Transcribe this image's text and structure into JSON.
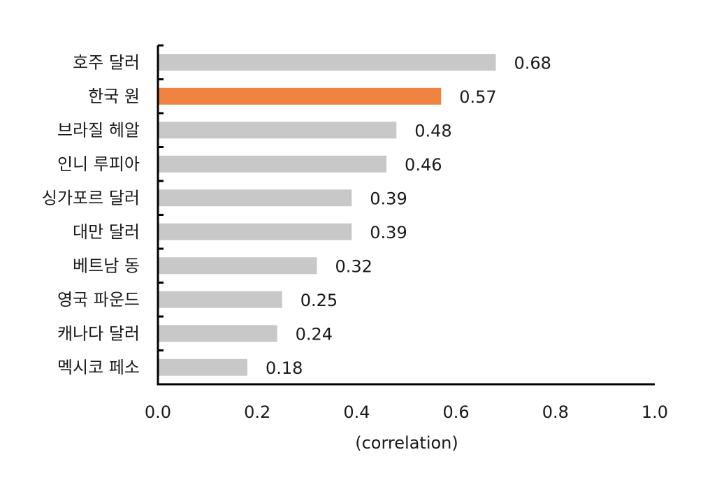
{
  "chart_data": {
    "type": "bar",
    "orientation": "horizontal",
    "categories": [
      "호주 달러",
      "한국 원",
      "브라질 헤알",
      "인니 루피아",
      "싱가포르 달러",
      "대만 달러",
      "베트남 동",
      "영국 파운드",
      "캐나다 달러",
      "멕시코 페소"
    ],
    "values": [
      0.68,
      0.57,
      0.48,
      0.46,
      0.39,
      0.39,
      0.32,
      0.25,
      0.24,
      0.18
    ],
    "value_labels": [
      "0.68",
      "0.57",
      "0.48",
      "0.46",
      "0.39",
      "0.39",
      "0.32",
      "0.25",
      "0.24",
      "0.18"
    ],
    "highlight_category": "한국 원",
    "xlim": [
      0,
      1.0
    ],
    "xticks": [
      0.0,
      0.2,
      0.4,
      0.6,
      0.8,
      1.0
    ],
    "xtick_labels": [
      "0.0",
      "0.2",
      "0.4",
      "0.6",
      "0.8",
      "1.0"
    ],
    "xlabel": "(correlation)",
    "ylabel": "",
    "title": "",
    "grid": false,
    "legend": false,
    "colors": {
      "bar": "#c8c8c8",
      "highlight": "#ef8442",
      "axis": "#000000"
    }
  }
}
